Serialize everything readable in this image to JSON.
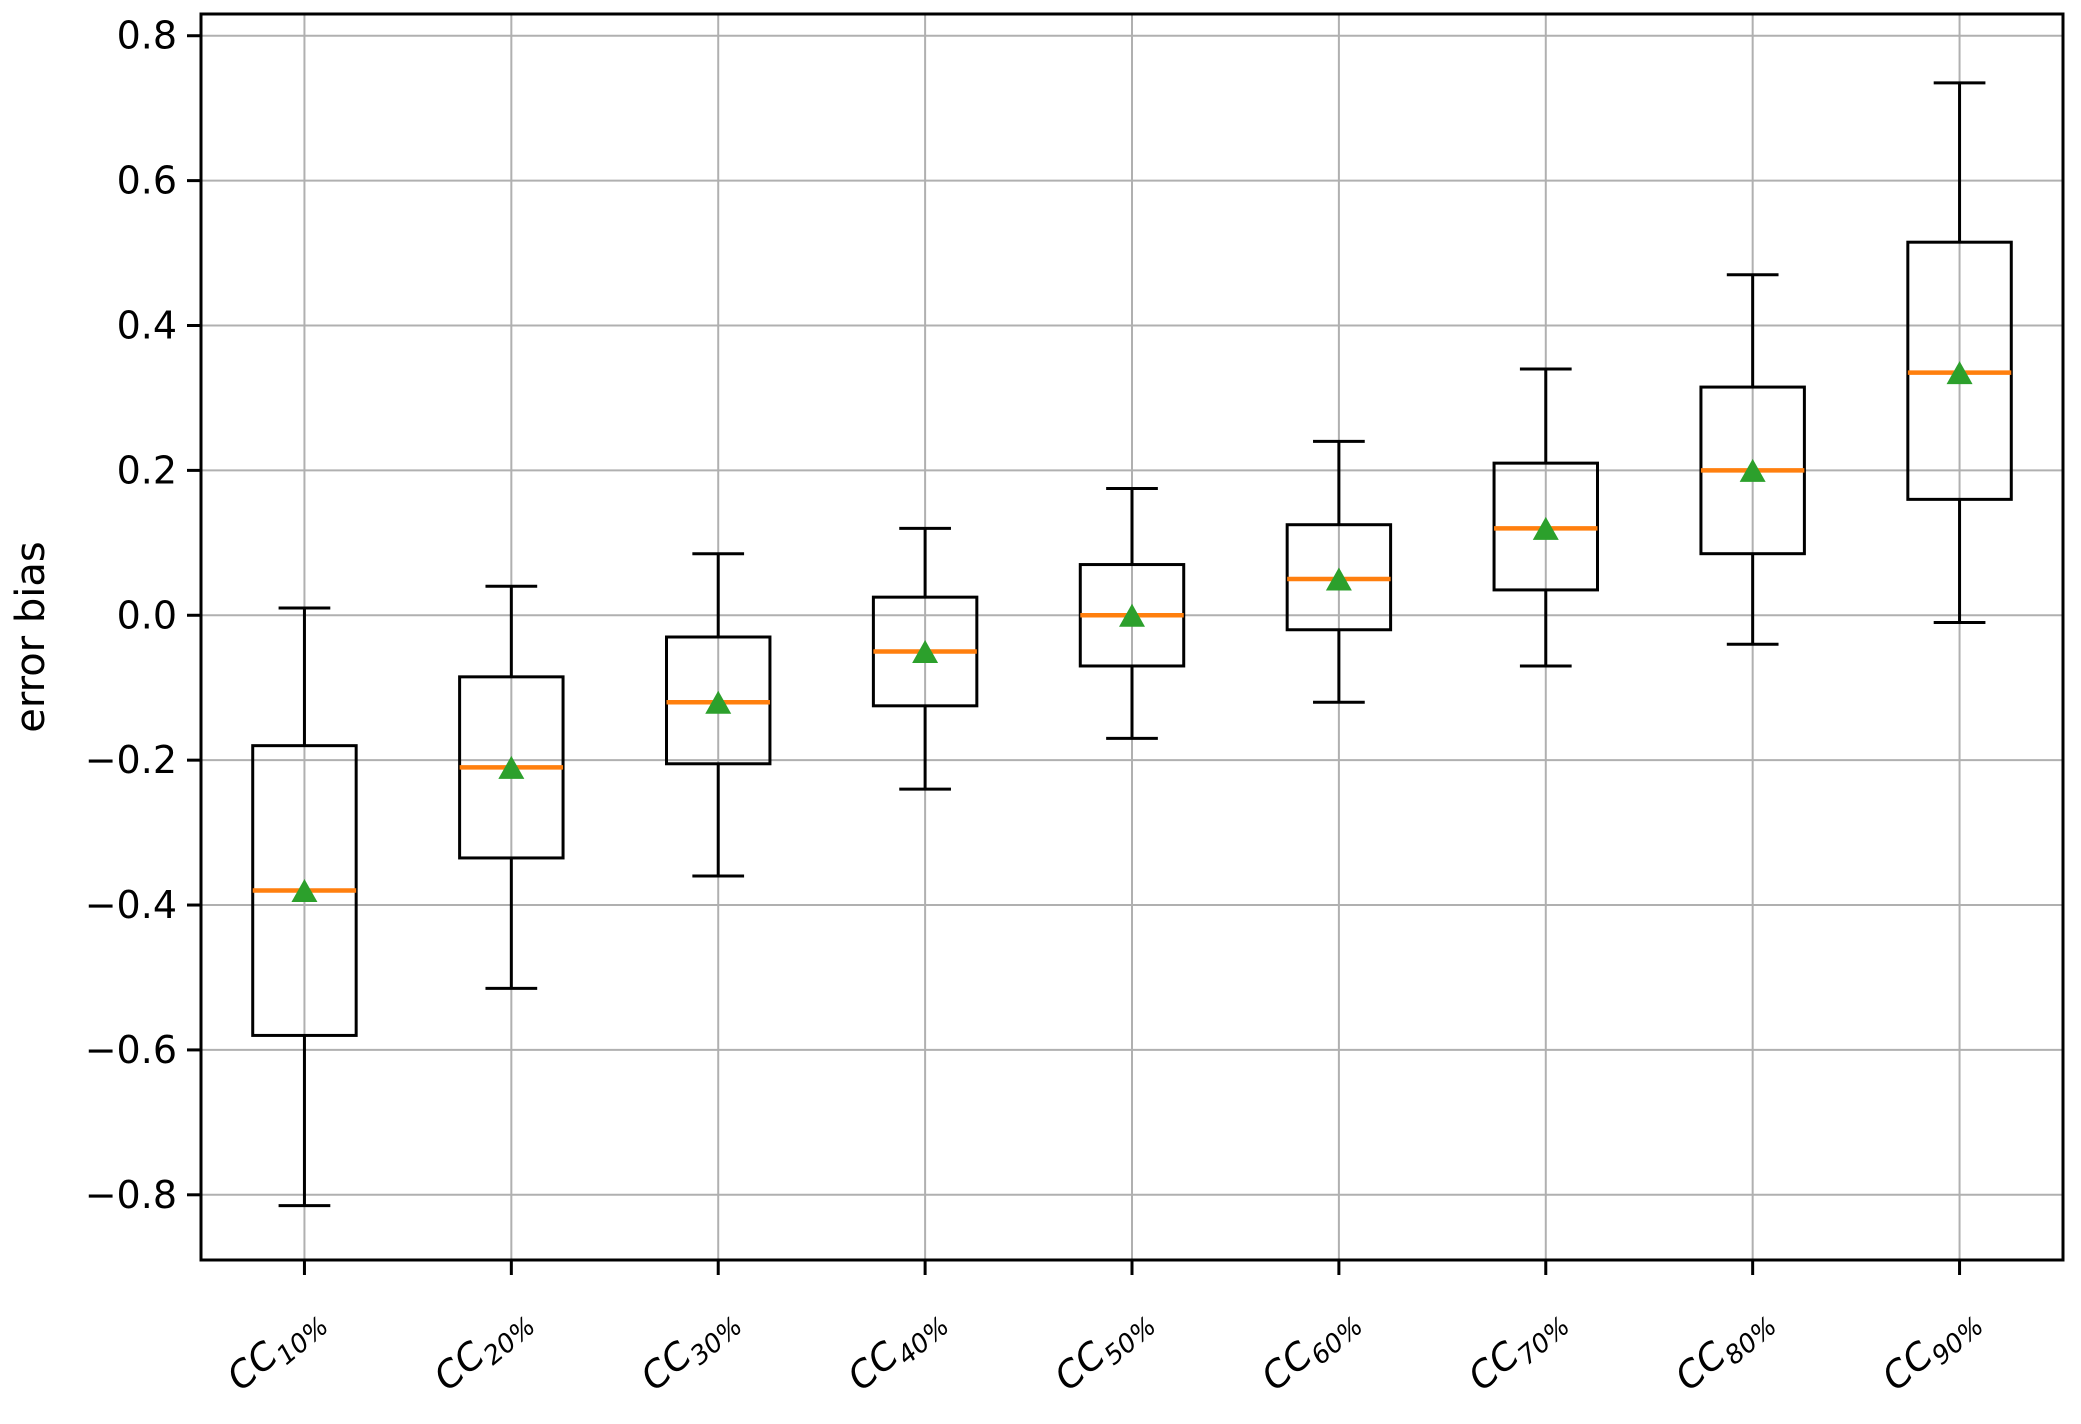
{
  "chart_data": {
    "type": "boxplot",
    "title": "",
    "ylabel": "error bias",
    "xlabel": "",
    "categories": [
      "CC_10%",
      "CC_20%",
      "CC_30%",
      "CC_40%",
      "CC_50%",
      "CC_60%",
      "CC_70%",
      "CC_80%",
      "CC_90%"
    ],
    "yticks": [
      -0.8,
      -0.6,
      -0.4,
      -0.2,
      0.0,
      0.2,
      0.4,
      0.6,
      0.8
    ],
    "ylim": [
      -0.89,
      0.83
    ],
    "x_tick_rotation_deg": 40,
    "grid": {
      "show": true,
      "color": "#b0b0b0"
    },
    "legend": {
      "show": false
    },
    "colors": {
      "box": "#000000",
      "whisker": "#000000",
      "median": "#ff7f0e",
      "mean_marker": "#2ca02c",
      "background": "#ffffff",
      "frame": "#000000"
    },
    "mean_marker_shape": "triangle-up",
    "series": [
      {
        "label": "CC_10%",
        "whisker_low": -0.815,
        "q1": -0.58,
        "median": -0.38,
        "mean": -0.38,
        "q3": -0.18,
        "whisker_high": 0.01
      },
      {
        "label": "CC_20%",
        "whisker_low": -0.515,
        "q1": -0.335,
        "median": -0.21,
        "mean": -0.21,
        "q3": -0.085,
        "whisker_high": 0.04
      },
      {
        "label": "CC_30%",
        "whisker_low": -0.36,
        "q1": -0.205,
        "median": -0.12,
        "mean": -0.12,
        "q3": -0.03,
        "whisker_high": 0.085
      },
      {
        "label": "CC_40%",
        "whisker_low": -0.24,
        "q1": -0.125,
        "median": -0.05,
        "mean": -0.05,
        "q3": 0.025,
        "whisker_high": 0.12
      },
      {
        "label": "CC_50%",
        "whisker_low": -0.17,
        "q1": -0.07,
        "median": 0.0,
        "mean": 0.0,
        "q3": 0.07,
        "whisker_high": 0.175
      },
      {
        "label": "CC_60%",
        "whisker_low": -0.12,
        "q1": -0.02,
        "median": 0.05,
        "mean": 0.05,
        "q3": 0.125,
        "whisker_high": 0.24
      },
      {
        "label": "CC_70%",
        "whisker_low": -0.07,
        "q1": 0.035,
        "median": 0.12,
        "mean": 0.12,
        "q3": 0.21,
        "whisker_high": 0.34
      },
      {
        "label": "CC_80%",
        "whisker_low": -0.04,
        "q1": 0.085,
        "median": 0.2,
        "mean": 0.2,
        "q3": 0.315,
        "whisker_high": 0.47
      },
      {
        "label": "CC_90%",
        "whisker_low": -0.01,
        "q1": 0.16,
        "median": 0.335,
        "mean": 0.335,
        "q3": 0.515,
        "whisker_high": 0.735
      }
    ]
  }
}
